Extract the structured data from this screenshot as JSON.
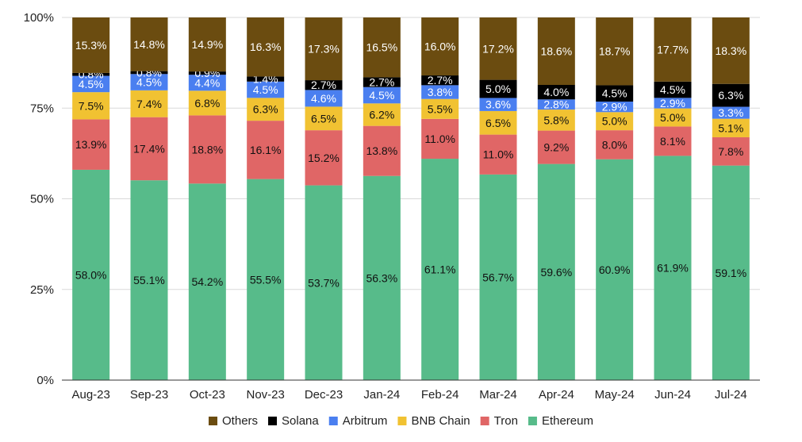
{
  "chart_data": {
    "type": "bar",
    "stacked": true,
    "title": "",
    "xlabel": "",
    "ylabel": "",
    "ylim": [
      0,
      100
    ],
    "y_ticks": [
      "0%",
      "25%",
      "50%",
      "75%",
      "100%"
    ],
    "y_tick_values": [
      0,
      25,
      50,
      75,
      100
    ],
    "grid": true,
    "legend_position": "bottom",
    "categories": [
      "Aug-23",
      "Sep-23",
      "Oct-23",
      "Nov-23",
      "Dec-23",
      "Jan-24",
      "Feb-24",
      "Mar-24",
      "Apr-24",
      "May-24",
      "Jun-24",
      "Jul-24"
    ],
    "series": [
      {
        "name": "Ethereum",
        "color": "#57bb8a",
        "label_color": "#111111",
        "values": [
          58.0,
          55.1,
          54.2,
          55.5,
          53.7,
          56.3,
          61.1,
          56.7,
          59.6,
          60.9,
          61.9,
          59.1
        ],
        "labels": [
          "58.0%",
          "55.1%",
          "54.2%",
          "55.5%",
          "53.7%",
          "56.3%",
          "61.1%",
          "56.7%",
          "59.6%",
          "60.9%",
          "61.9%",
          "59.1%"
        ]
      },
      {
        "name": "Tron",
        "color": "#e06666",
        "label_color": "#111111",
        "values": [
          13.9,
          17.4,
          18.8,
          16.1,
          15.2,
          13.8,
          11.0,
          11.0,
          9.2,
          8.0,
          8.1,
          7.8
        ],
        "labels": [
          "13.9%",
          "17.4%",
          "18.8%",
          "16.1%",
          "15.2%",
          "13.8%",
          "11.0%",
          "11.0%",
          "9.2%",
          "8.0%",
          "8.1%",
          "7.8%"
        ]
      },
      {
        "name": "BNB Chain",
        "color": "#f1c232",
        "label_color": "#111111",
        "values": [
          7.5,
          7.4,
          6.8,
          6.3,
          6.5,
          6.2,
          5.5,
          6.5,
          5.8,
          5.0,
          5.0,
          5.1
        ],
        "labels": [
          "7.5%",
          "7.4%",
          "6.8%",
          "6.3%",
          "6.5%",
          "6.2%",
          "5.5%",
          "6.5%",
          "5.8%",
          "5.0%",
          "5.0%",
          "5.1%"
        ]
      },
      {
        "name": "Arbitrum",
        "color": "#4a7ff0",
        "label_color": "#ffffff",
        "values": [
          4.5,
          4.5,
          4.4,
          4.5,
          4.6,
          4.5,
          3.8,
          3.6,
          2.8,
          2.9,
          2.9,
          3.3
        ],
        "labels": [
          "4.5%",
          "4.5%",
          "4.4%",
          "4.5%",
          "4.6%",
          "4.5%",
          "3.8%",
          "3.6%",
          "2.8%",
          "2.9%",
          "2.9%",
          "3.3%"
        ]
      },
      {
        "name": "Solana",
        "color": "#000000",
        "label_color": "#ffffff",
        "values": [
          0.8,
          0.8,
          0.9,
          1.4,
          2.7,
          2.7,
          2.7,
          5.0,
          4.0,
          4.5,
          4.5,
          6.3
        ],
        "labels": [
          "0.8%",
          "0.8%",
          "0.9%",
          "1.4%",
          "2.7%",
          "2.7%",
          "2.7%",
          "5.0%",
          "4.0%",
          "4.5%",
          "4.5%",
          "6.3%"
        ]
      },
      {
        "name": "Others",
        "color": "#6b4c10",
        "label_color": "#ffffff",
        "values": [
          15.3,
          14.8,
          14.9,
          16.3,
          17.3,
          16.5,
          16.0,
          17.2,
          18.6,
          18.7,
          17.7,
          18.3
        ],
        "labels": [
          "15.3%",
          "14.8%",
          "14.9%",
          "16.3%",
          "17.3%",
          "16.5%",
          "16.0%",
          "17.2%",
          "18.6%",
          "18.7%",
          "17.7%",
          "18.3%"
        ]
      }
    ],
    "legend_order": [
      "Others",
      "Solana",
      "Arbitrum",
      "BNB Chain",
      "Tron",
      "Ethereum"
    ]
  }
}
